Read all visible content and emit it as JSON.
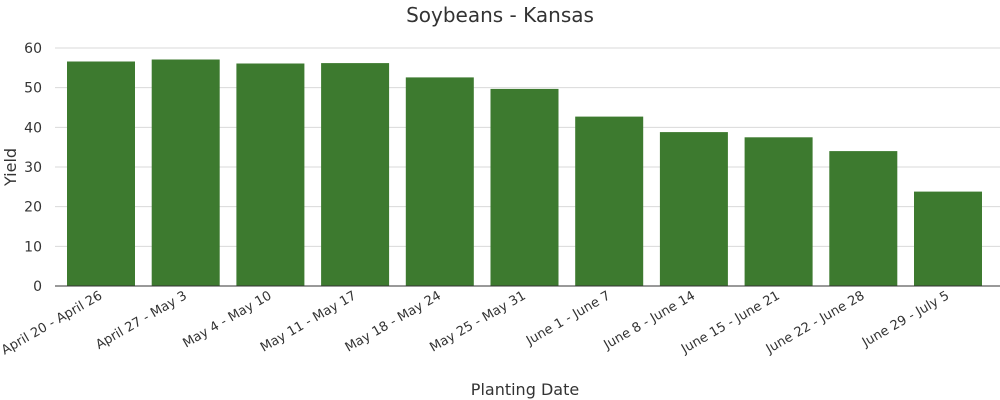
{
  "chart_data": {
    "type": "bar",
    "title": "Soybeans - Kansas",
    "xlabel": "Planting Date",
    "ylabel": "Yield",
    "categories": [
      "April 20 - April 26",
      "April 27 - May 3",
      "May 4 - May 10",
      "May 11 - May 17",
      "May 18 - May 24",
      "May 25 - May 31",
      "June 1 - June 7",
      "June 8 - June 14",
      "June 15 - June 21",
      "June 22 - June 28",
      "June 29 - July 5"
    ],
    "values": [
      56.6,
      57.1,
      56.1,
      56.2,
      52.6,
      49.7,
      42.7,
      38.8,
      37.5,
      34.0,
      23.8
    ],
    "ylim": [
      0,
      60
    ],
    "yticks": [
      0,
      10,
      20,
      30,
      40,
      50,
      60
    ],
    "grid": true,
    "legend": "none",
    "bar_color": "#3d7a2f"
  }
}
